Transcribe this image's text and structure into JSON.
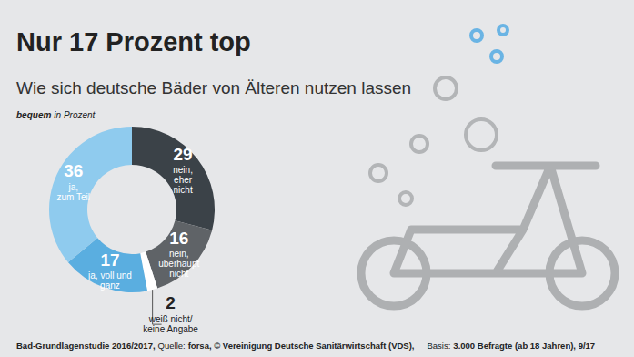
{
  "chart_data": {
    "type": "donut",
    "title": "Nur 17 Prozent top",
    "subtitle": "Wie sich deutsche Bäder von Älteren nutzen lassen",
    "annotations": [
      "bequem",
      "in Prozent"
    ],
    "categories": [
      [
        "nein,",
        "eher",
        "nicht"
      ],
      [
        "nein,",
        "überhaupt",
        "nicht"
      ],
      [
        "weiß nicht/",
        "keine Angabe"
      ],
      [
        "ja, voll und",
        "ganz"
      ],
      [
        "ja,",
        "zum Teil"
      ]
    ],
    "values": [
      29,
      16,
      2,
      17,
      36
    ],
    "colors": [
      "#3b4248",
      "#5f6367",
      "#ffffff",
      "#5aaee0",
      "#8fcbee"
    ],
    "data_labels": true,
    "source": [
      "Bad-Grundlagenstudie 2016/2017,",
      "Quelle:",
      "forsa, © Vereinigung Deutsche Sanitärwirtschaft (VDS),",
      "Basis:",
      "3.000 Befragte (ab 18 Jahren), 9/17"
    ]
  }
}
